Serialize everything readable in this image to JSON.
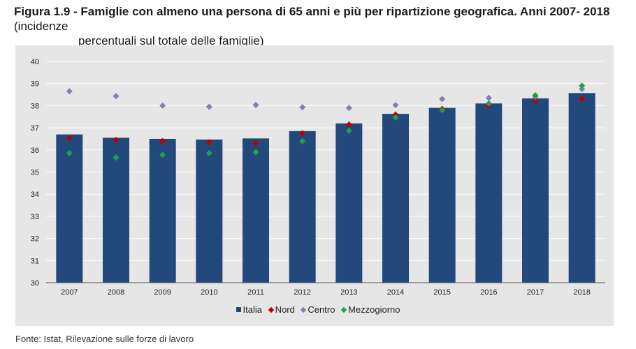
{
  "title": {
    "bold": "Figura 1.9 - Famiglie con almeno una persona di 65 anni e più per ripartizione geografica. Anni 2007- 2018",
    "rest_line1": "(incidenze",
    "rest_line2": "percentuali sul totale delle famiglie)"
  },
  "source": "Fonte: Istat, Rilevazione sulle forze di lavoro",
  "colors": {
    "italia": "#23487c",
    "nord": "#c00000",
    "centro": "#7f7fb4",
    "mezzogiorno": "#21a04a",
    "plot_bg": "#e6e6e6",
    "grid": "#ffffff"
  },
  "chart_data": {
    "type": "bar",
    "categories": [
      "2007",
      "2008",
      "2009",
      "2010",
      "2011",
      "2012",
      "2013",
      "2014",
      "2015",
      "2016",
      "2017",
      "2018"
    ],
    "ylim": [
      30,
      40
    ],
    "yticks": [
      30,
      31,
      32,
      33,
      34,
      35,
      36,
      37,
      38,
      39,
      40
    ],
    "series": [
      {
        "name": "Italia",
        "kind": "bar",
        "color": "#23487c",
        "values": [
          36.7,
          36.55,
          36.5,
          36.47,
          36.52,
          36.85,
          37.2,
          37.63,
          37.9,
          38.1,
          38.33,
          38.57
        ]
      },
      {
        "name": "Nord",
        "kind": "marker",
        "color": "#c00000",
        "values": [
          36.55,
          36.45,
          36.4,
          36.35,
          36.3,
          36.75,
          37.15,
          37.6,
          37.85,
          38.0,
          38.23,
          38.3
        ]
      },
      {
        "name": "Centro",
        "kind": "marker",
        "color": "#7f7fb4",
        "values": [
          38.65,
          38.43,
          38.0,
          37.95,
          38.03,
          37.93,
          37.9,
          38.03,
          38.3,
          38.35,
          38.4,
          38.75
        ]
      },
      {
        "name": "Mezzogiorno",
        "kind": "marker",
        "color": "#21a04a",
        "values": [
          35.85,
          35.65,
          35.78,
          35.85,
          35.9,
          36.4,
          36.87,
          37.47,
          37.8,
          38.1,
          38.47,
          38.9
        ]
      }
    ]
  }
}
